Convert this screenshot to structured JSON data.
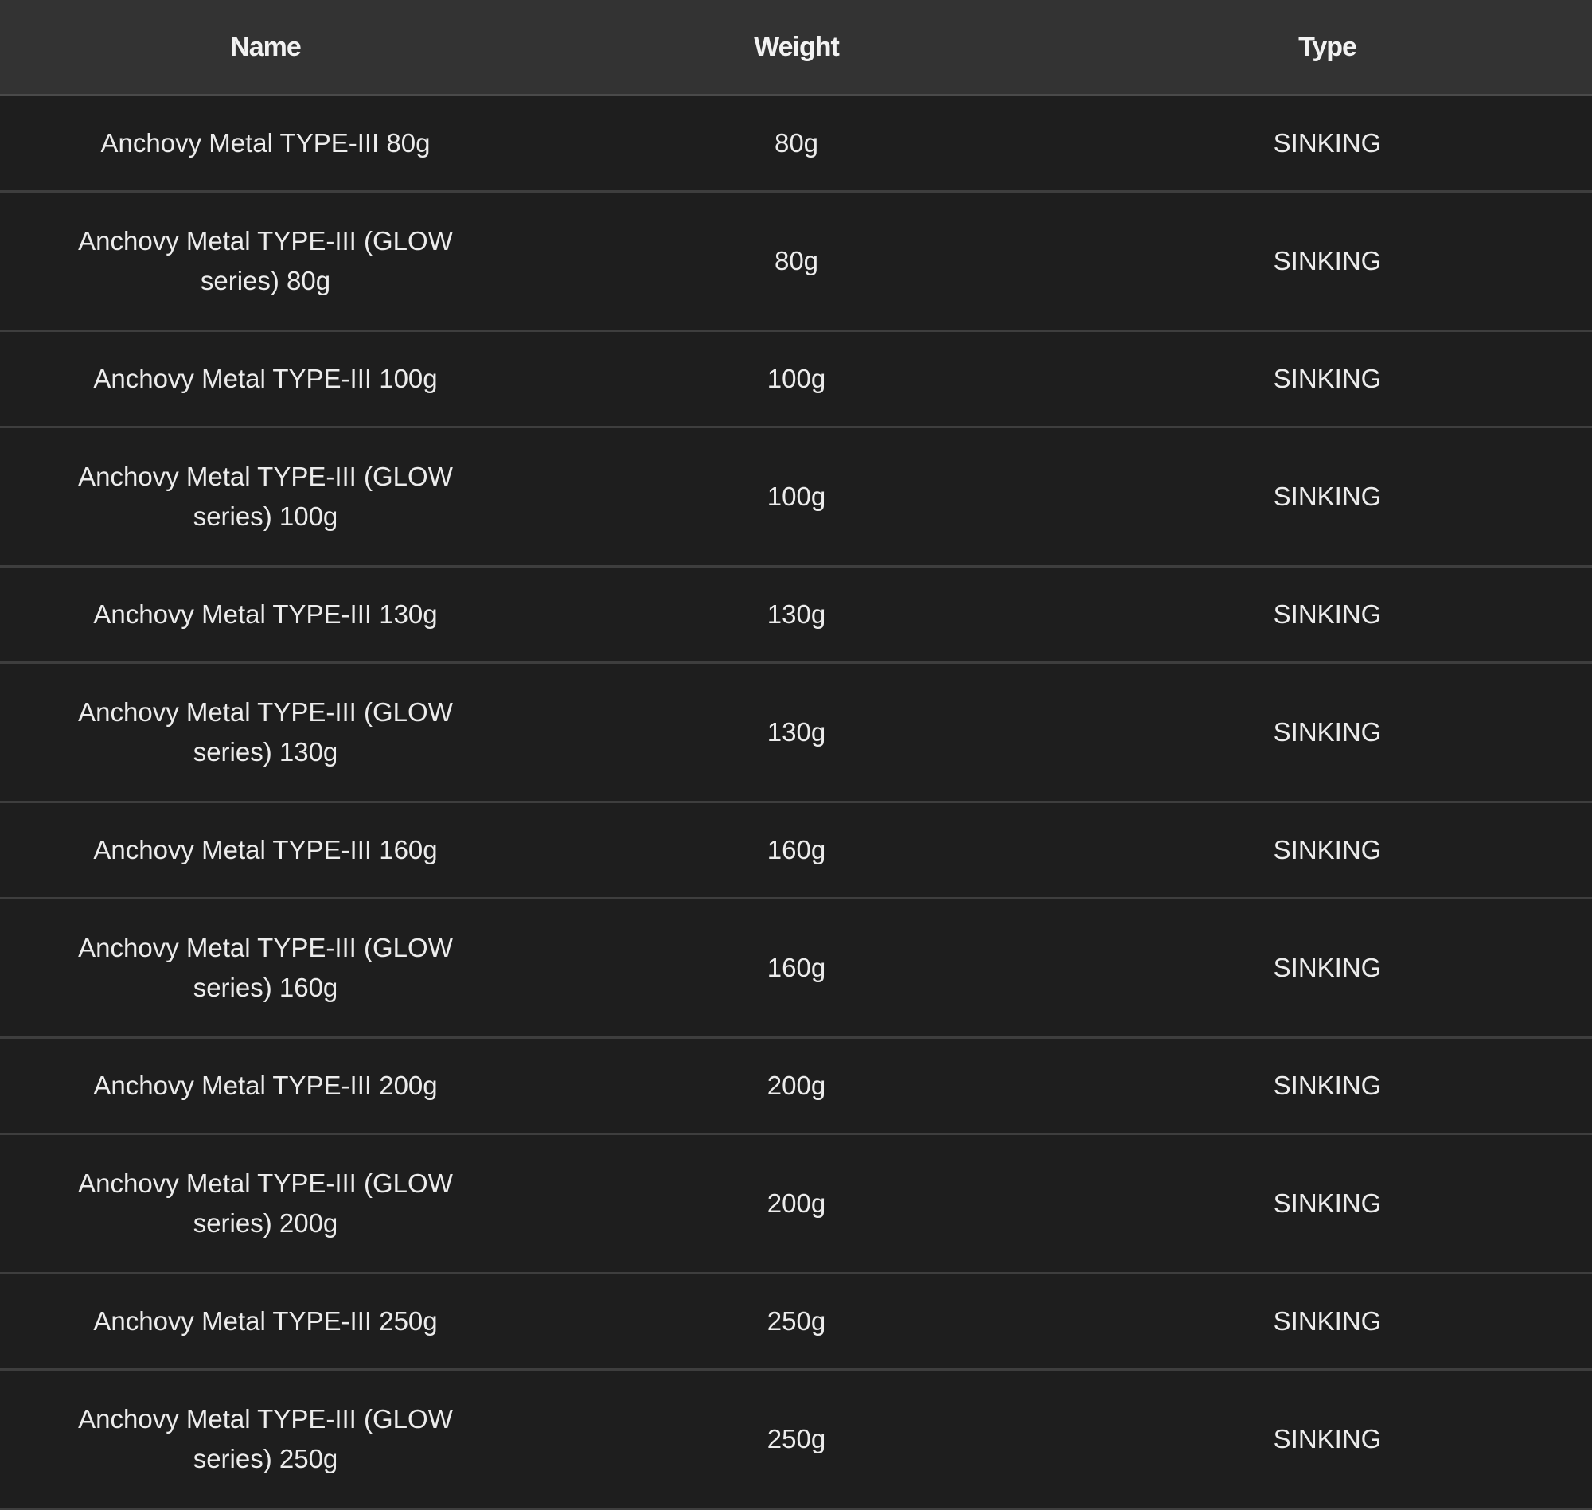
{
  "table": {
    "headers": {
      "name": "Name",
      "weight": "Weight",
      "type": "Type"
    },
    "rows": [
      {
        "name": "Anchovy Metal TYPE-III 80g",
        "weight": "80g",
        "type": "SINKING"
      },
      {
        "name": "Anchovy Metal TYPE-III (GLOW series) 80g",
        "weight": "80g",
        "type": "SINKING"
      },
      {
        "name": "Anchovy Metal TYPE-III 100g",
        "weight": "100g",
        "type": "SINKING"
      },
      {
        "name": "Anchovy Metal TYPE-III (GLOW series) 100g",
        "weight": "100g",
        "type": "SINKING"
      },
      {
        "name": "Anchovy Metal TYPE-III 130g",
        "weight": "130g",
        "type": "SINKING"
      },
      {
        "name": "Anchovy Metal TYPE-III (GLOW series) 130g",
        "weight": "130g",
        "type": "SINKING"
      },
      {
        "name": "Anchovy Metal TYPE-III 160g",
        "weight": "160g",
        "type": "SINKING"
      },
      {
        "name": "Anchovy Metal TYPE-III (GLOW series) 160g",
        "weight": "160g",
        "type": "SINKING"
      },
      {
        "name": "Anchovy Metal TYPE-III 200g",
        "weight": "200g",
        "type": "SINKING"
      },
      {
        "name": "Anchovy Metal TYPE-III (GLOW series) 200g",
        "weight": "200g",
        "type": "SINKING"
      },
      {
        "name": "Anchovy Metal TYPE-III 250g",
        "weight": "250g",
        "type": "SINKING"
      },
      {
        "name": "Anchovy Metal TYPE-III (GLOW series) 250g",
        "weight": "250g",
        "type": "SINKING"
      }
    ]
  }
}
